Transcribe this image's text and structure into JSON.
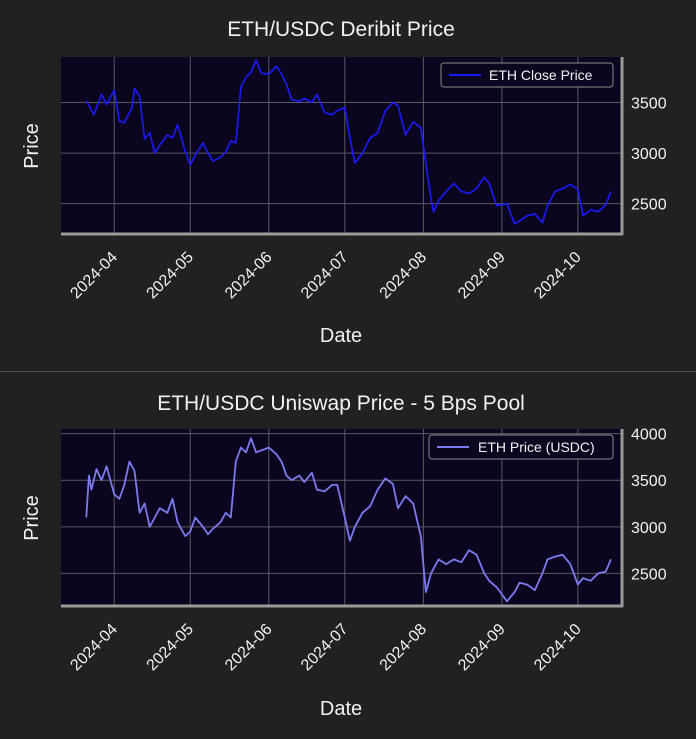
{
  "charts": [
    {
      "title": "ETH/USDC Deribit Price",
      "xlabel": "Date",
      "ylabel": "Price",
      "legend": "ETH Close Price",
      "legend_position": "top-right",
      "y_axis_side": "right",
      "ylim": [
        2200,
        3950
      ],
      "yticks": [
        2500,
        3000,
        3500
      ],
      "ytick_labels": [
        "2500",
        "3000",
        "3500"
      ],
      "color": "#1a1aff",
      "plot_bg": "#0c0520",
      "grid": true
    },
    {
      "title": "ETH/USDC Uniswap Price - 5 Bps Pool",
      "xlabel": "Date",
      "ylabel": "Price",
      "legend": "ETH Price (USDC)",
      "legend_position": "top-right",
      "y_axis_side": "right",
      "ylim": [
        2150,
        4050
      ],
      "yticks": [
        2500,
        3000,
        3500,
        4000
      ],
      "ytick_labels": [
        "2500",
        "3000",
        "3500",
        "4000"
      ],
      "color": "#7b7bf0",
      "plot_bg": "#0c0520",
      "grid": true
    }
  ],
  "chart_data": [
    {
      "type": "line",
      "title": "ETH/USDC Deribit Price",
      "xlabel": "Date",
      "ylabel": "Price",
      "xlim": [
        "2024-03-11",
        "2024-10-18"
      ],
      "ylim": [
        2200,
        3950
      ],
      "x_ticks": [
        "2024-04",
        "2024-05",
        "2024-06",
        "2024-07",
        "2024-08",
        "2024-09",
        "2024-10"
      ],
      "series": [
        {
          "name": "ETH Close Price",
          "x": [
            "2024-03-21",
            "2024-03-24",
            "2024-03-27",
            "2024-03-29",
            "2024-04-01",
            "2024-04-03",
            "2024-04-05",
            "2024-04-08",
            "2024-04-09",
            "2024-04-11",
            "2024-04-13",
            "2024-04-15",
            "2024-04-17",
            "2024-04-19",
            "2024-04-22",
            "2024-04-24",
            "2024-04-26",
            "2024-04-29",
            "2024-05-01",
            "2024-05-03",
            "2024-05-06",
            "2024-05-08",
            "2024-05-10",
            "2024-05-13",
            "2024-05-15",
            "2024-05-17",
            "2024-05-19",
            "2024-05-21",
            "2024-05-23",
            "2024-05-25",
            "2024-05-27",
            "2024-05-29",
            "2024-06-01",
            "2024-06-04",
            "2024-06-06",
            "2024-06-08",
            "2024-06-10",
            "2024-06-13",
            "2024-06-15",
            "2024-06-18",
            "2024-06-20",
            "2024-06-23",
            "2024-06-26",
            "2024-06-28",
            "2024-07-01",
            "2024-07-03",
            "2024-07-05",
            "2024-07-08",
            "2024-07-11",
            "2024-07-14",
            "2024-07-17",
            "2024-07-20",
            "2024-07-22",
            "2024-07-25",
            "2024-07-28",
            "2024-07-31",
            "2024-08-02",
            "2024-08-04",
            "2024-08-05",
            "2024-08-07",
            "2024-08-10",
            "2024-08-13",
            "2024-08-16",
            "2024-08-19",
            "2024-08-22",
            "2024-08-25",
            "2024-08-27",
            "2024-08-30",
            "2024-09-03",
            "2024-09-06",
            "2024-09-08",
            "2024-09-11",
            "2024-09-14",
            "2024-09-17",
            "2024-09-19",
            "2024-09-22",
            "2024-09-25",
            "2024-09-28",
            "2024-10-01",
            "2024-10-03",
            "2024-10-06",
            "2024-10-09",
            "2024-10-12",
            "2024-10-14"
          ],
          "y": [
            3520,
            3380,
            3580,
            3480,
            3620,
            3320,
            3300,
            3450,
            3640,
            3560,
            3140,
            3200,
            3000,
            3080,
            3180,
            3150,
            3280,
            3020,
            2880,
            2980,
            3100,
            3000,
            2920,
            2960,
            3010,
            3120,
            3100,
            3650,
            3750,
            3800,
            3920,
            3790,
            3780,
            3860,
            3780,
            3680,
            3530,
            3510,
            3540,
            3500,
            3580,
            3400,
            3380,
            3420,
            3450,
            3150,
            2900,
            3000,
            3150,
            3200,
            3420,
            3500,
            3470,
            3180,
            3310,
            3250,
            2900,
            2550,
            2420,
            2530,
            2620,
            2700,
            2620,
            2600,
            2650,
            2760,
            2700,
            2480,
            2500,
            2300,
            2330,
            2380,
            2400,
            2310,
            2480,
            2620,
            2650,
            2690,
            2640,
            2380,
            2440,
            2420,
            2490,
            2620
          ]
        }
      ]
    },
    {
      "type": "line",
      "title": "ETH/USDC Uniswap Price - 5 Bps Pool",
      "xlabel": "Date",
      "ylabel": "Price",
      "xlim": [
        "2024-03-11",
        "2024-10-18"
      ],
      "ylim": [
        2150,
        4050
      ],
      "x_ticks": [
        "2024-04",
        "2024-05",
        "2024-06",
        "2024-07",
        "2024-08",
        "2024-09",
        "2024-10"
      ],
      "series": [
        {
          "name": "ETH Price (USDC)",
          "x": [
            "2024-03-21",
            "2024-03-22",
            "2024-03-23",
            "2024-03-25",
            "2024-03-27",
            "2024-03-29",
            "2024-04-01",
            "2024-04-03",
            "2024-04-05",
            "2024-04-07",
            "2024-04-09",
            "2024-04-11",
            "2024-04-13",
            "2024-04-15",
            "2024-04-17",
            "2024-04-19",
            "2024-04-22",
            "2024-04-24",
            "2024-04-26",
            "2024-04-29",
            "2024-05-01",
            "2024-05-03",
            "2024-05-06",
            "2024-05-08",
            "2024-05-10",
            "2024-05-13",
            "2024-05-15",
            "2024-05-17",
            "2024-05-19",
            "2024-05-21",
            "2024-05-23",
            "2024-05-25",
            "2024-05-27",
            "2024-05-29",
            "2024-06-01",
            "2024-06-04",
            "2024-06-06",
            "2024-06-08",
            "2024-06-10",
            "2024-06-13",
            "2024-06-15",
            "2024-06-18",
            "2024-06-20",
            "2024-06-23",
            "2024-06-26",
            "2024-06-28",
            "2024-07-01",
            "2024-07-03",
            "2024-07-05",
            "2024-07-08",
            "2024-07-11",
            "2024-07-14",
            "2024-07-17",
            "2024-07-20",
            "2024-07-22",
            "2024-07-25",
            "2024-07-28",
            "2024-07-31",
            "2024-08-02",
            "2024-08-04",
            "2024-08-05",
            "2024-08-07",
            "2024-08-10",
            "2024-08-13",
            "2024-08-16",
            "2024-08-19",
            "2024-08-22",
            "2024-08-25",
            "2024-08-27",
            "2024-08-30",
            "2024-09-03",
            "2024-09-06",
            "2024-09-08",
            "2024-09-11",
            "2024-09-14",
            "2024-09-17",
            "2024-09-19",
            "2024-09-22",
            "2024-09-25",
            "2024-09-28",
            "2024-10-01",
            "2024-10-03",
            "2024-10-06",
            "2024-10-09",
            "2024-10-12",
            "2024-10-14"
          ],
          "y": [
            3100,
            3550,
            3400,
            3620,
            3500,
            3650,
            3350,
            3300,
            3450,
            3700,
            3600,
            3150,
            3250,
            3000,
            3100,
            3200,
            3150,
            3300,
            3050,
            2900,
            2950,
            3100,
            3000,
            2920,
            2980,
            3050,
            3150,
            3100,
            3700,
            3850,
            3800,
            3950,
            3800,
            3820,
            3850,
            3780,
            3700,
            3550,
            3500,
            3550,
            3480,
            3580,
            3400,
            3380,
            3450,
            3450,
            3100,
            2850,
            3000,
            3150,
            3220,
            3400,
            3520,
            3460,
            3200,
            3330,
            3250,
            2900,
            2300,
            2500,
            2550,
            2650,
            2600,
            2650,
            2620,
            2750,
            2700,
            2500,
            2420,
            2350,
            2200,
            2300,
            2400,
            2380,
            2320,
            2500,
            2650,
            2680,
            2700,
            2600,
            2380,
            2450,
            2420,
            2500,
            2520,
            2650
          ]
        }
      ]
    }
  ]
}
